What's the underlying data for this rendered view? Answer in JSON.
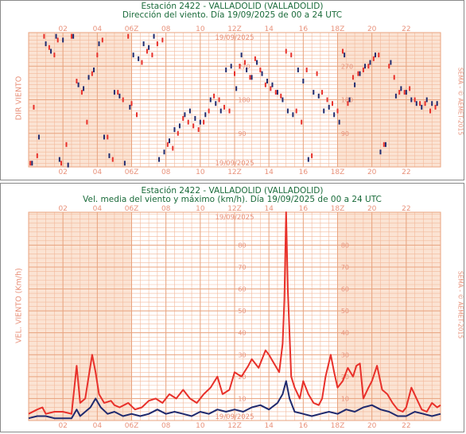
{
  "chart_data": [
    {
      "type": "scatter",
      "station_title": "Estación 2422 - VALLADOLID (VALLADOLID)",
      "title": "Dirección del viento. Día 19/09/2025 de 00 a 24 UTC",
      "ylabel": "DIR VIENTO",
      "credit": "SEMA - © AEMET-2015",
      "date_label": "19/09/2025",
      "hour_ticks": [
        "02",
        "04",
        "06Z",
        "08",
        "10",
        "12Z",
        "14",
        "16",
        "18Z",
        "20",
        "22"
      ],
      "y_ticks": [
        "90",
        "180",
        "270"
      ],
      "xlim": [
        0,
        24
      ],
      "ylim": [
        0,
        360
      ],
      "night_shading": [
        [
          0,
          6
        ],
        [
          18,
          24
        ]
      ],
      "colors": {
        "series1": "#e8302a",
        "series2": "#1f2a6e",
        "shade": "#fbe3d3",
        "grid": "#f2b89a"
      },
      "series": [
        {
          "name": "",
          "x": [
            0.1,
            0.3,
            0.5,
            0.9,
            1.2,
            1.5,
            1.7,
            1.9,
            2.2,
            2.5,
            2.8,
            3.1,
            3.4,
            3.7,
            4.0,
            4.3,
            4.6,
            4.9,
            5.2,
            5.5,
            5.8,
            6.0,
            6.3,
            6.6,
            6.9,
            7.2,
            7.5,
            7.8,
            8.1,
            8.4,
            8.7,
            9.0,
            9.3,
            9.6,
            9.9,
            10.2,
            10.5,
            10.8,
            11.1,
            11.4,
            11.7,
            12.0,
            12.3,
            12.6,
            12.9,
            13.2,
            13.5,
            13.8,
            14.1,
            14.4,
            14.7,
            15.0,
            15.3,
            15.6,
            15.9,
            16.2,
            16.5,
            16.8,
            17.1,
            17.4,
            17.7,
            18.0,
            18.3,
            18.6,
            18.9,
            19.2,
            19.5,
            19.8,
            20.1,
            20.4,
            20.7,
            21.0,
            21.3,
            21.6,
            21.9,
            22.2,
            22.5,
            22.8,
            23.1,
            23.4,
            23.7
          ],
          "values": [
            10,
            160,
            30,
            350,
            320,
            300,
            340,
            10,
            60,
            350,
            230,
            200,
            120,
            250,
            300,
            340,
            80,
            20,
            200,
            180,
            350,
            170,
            140,
            280,
            310,
            300,
            330,
            340,
            60,
            50,
            90,
            130,
            120,
            110,
            100,
            120,
            150,
            190,
            180,
            160,
            150,
            250,
            270,
            280,
            240,
            290,
            260,
            220,
            210,
            200,
            190,
            310,
            300,
            150,
            120,
            260,
            30,
            250,
            200,
            180,
            170,
            150,
            310,
            170,
            240,
            250,
            260,
            270,
            290,
            300,
            60,
            270,
            240,
            200,
            200,
            210,
            180,
            170,
            170,
            150,
            160
          ]
        },
        {
          "name": "",
          "x": [
            0.2,
            0.6,
            1.0,
            1.3,
            1.6,
            1.8,
            2.0,
            2.3,
            2.6,
            2.9,
            3.2,
            3.5,
            3.8,
            4.1,
            4.4,
            4.7,
            5.0,
            5.3,
            5.6,
            5.9,
            6.1,
            6.4,
            6.7,
            7.0,
            7.3,
            7.6,
            7.9,
            8.2,
            8.5,
            8.8,
            9.1,
            9.4,
            9.7,
            10.0,
            10.3,
            10.6,
            10.9,
            11.2,
            11.5,
            11.8,
            12.1,
            12.4,
            12.7,
            13.0,
            13.3,
            13.6,
            13.9,
            14.2,
            14.5,
            14.8,
            15.1,
            15.4,
            15.7,
            16.0,
            16.3,
            16.6,
            16.9,
            17.2,
            17.5,
            17.8,
            18.1,
            18.4,
            18.7,
            19.0,
            19.3,
            19.6,
            19.9,
            20.2,
            20.5,
            20.8,
            21.1,
            21.4,
            21.7,
            22.0,
            22.3,
            22.6,
            22.9,
            23.2,
            23.5,
            23.8
          ],
          "values": [
            10,
            80,
            330,
            310,
            350,
            20,
            340,
            5,
            350,
            220,
            210,
            240,
            260,
            330,
            80,
            30,
            200,
            190,
            10,
            160,
            300,
            290,
            330,
            320,
            350,
            20,
            40,
            70,
            100,
            110,
            140,
            150,
            130,
            120,
            140,
            180,
            170,
            150,
            260,
            270,
            210,
            300,
            260,
            240,
            280,
            250,
            230,
            220,
            200,
            180,
            150,
            140,
            260,
            230,
            20,
            200,
            190,
            150,
            160,
            140,
            120,
            300,
            180,
            220,
            250,
            270,
            280,
            300,
            40,
            60,
            280,
            190,
            210,
            200,
            180,
            170,
            160,
            180,
            170,
            170
          ]
        }
      ]
    },
    {
      "type": "line",
      "station_title": "Estación 2422 - VALLADOLID (VALLADOLID)",
      "title": "Vel. media del viento y máximo (km/h). Día 19/09/2025 de 00 a 24 UTC",
      "ylabel": "VEL. VIENTO (Km/h)",
      "credit": "SEMA - © AEMET-2015",
      "date_label": "19/09/2025",
      "hour_ticks": [
        "02",
        "04",
        "06Z",
        "08",
        "10",
        "12Z",
        "14",
        "16",
        "18Z",
        "20",
        "22"
      ],
      "y_ticks": [
        "10",
        "20",
        "30",
        "40",
        "50",
        "60",
        "70",
        "80"
      ],
      "xlim": [
        0,
        24
      ],
      "ylim": [
        0,
        95
      ],
      "night_shading": [
        [
          0,
          6
        ],
        [
          18,
          24
        ]
      ],
      "colors": {
        "gust": "#e8302a",
        "mean": "#1f2a6e",
        "shade": "#fbe3d3",
        "grid": "#f2b89a"
      },
      "series": [
        {
          "name": "",
          "x": [
            0,
            0.5,
            0.8,
            1.0,
            1.5,
            2.0,
            2.5,
            2.8,
            3.0,
            3.3,
            3.5,
            3.7,
            3.9,
            4.1,
            4.4,
            4.8,
            5.0,
            5.3,
            5.8,
            6.2,
            6.6,
            7.0,
            7.4,
            7.8,
            8.2,
            8.6,
            9.0,
            9.4,
            9.8,
            10.2,
            10.6,
            11.0,
            11.3,
            11.7,
            12.0,
            12.4,
            12.8,
            13.0,
            13.4,
            13.8,
            14.0,
            14.3,
            14.6,
            14.8,
            14.9,
            15.0,
            15.1,
            15.3,
            15.5,
            15.8,
            16.0,
            16.3,
            16.6,
            16.9,
            17.1,
            17.3,
            17.6,
            17.8,
            18.0,
            18.3,
            18.6,
            18.9,
            19.1,
            19.3,
            19.5,
            19.8,
            20.0,
            20.3,
            20.6,
            20.9,
            21.2,
            21.5,
            21.8,
            22.0,
            22.3,
            22.6,
            22.9,
            23.2,
            23.5,
            23.8,
            24.0
          ],
          "values": [
            3,
            5,
            6,
            3,
            4,
            4,
            3,
            25,
            8,
            10,
            20,
            30,
            22,
            12,
            8,
            9,
            7,
            6,
            8,
            5,
            6,
            9,
            10,
            8,
            12,
            10,
            14,
            10,
            8,
            12,
            15,
            20,
            12,
            14,
            22,
            20,
            25,
            28,
            24,
            32,
            30,
            26,
            22,
            35,
            55,
            95,
            60,
            20,
            15,
            10,
            18,
            12,
            8,
            7,
            10,
            20,
            30,
            22,
            15,
            18,
            24,
            20,
            25,
            26,
            10,
            15,
            18,
            25,
            14,
            12,
            8,
            5,
            4,
            6,
            15,
            10,
            5,
            4,
            8,
            6,
            7
          ]
        },
        {
          "name": "",
          "x": [
            0,
            0.5,
            1.0,
            1.5,
            2.0,
            2.5,
            2.8,
            3.0,
            3.3,
            3.6,
            3.9,
            4.2,
            4.6,
            5.0,
            5.5,
            6.0,
            6.5,
            7.0,
            7.5,
            8.0,
            8.5,
            9.0,
            9.5,
            10.0,
            10.5,
            11.0,
            11.5,
            12.0,
            12.5,
            13.0,
            13.5,
            14.0,
            14.5,
            14.8,
            15.0,
            15.2,
            15.5,
            16.0,
            16.5,
            17.0,
            17.5,
            18.0,
            18.5,
            19.0,
            19.5,
            20.0,
            20.5,
            21.0,
            21.5,
            22.0,
            22.5,
            23.0,
            23.5,
            24.0
          ],
          "values": [
            1,
            2,
            2,
            1,
            1,
            1,
            5,
            2,
            4,
            6,
            10,
            6,
            3,
            4,
            2,
            3,
            2,
            3,
            5,
            3,
            4,
            3,
            2,
            4,
            3,
            5,
            4,
            5,
            4,
            6,
            7,
            5,
            8,
            12,
            18,
            10,
            4,
            3,
            2,
            3,
            4,
            3,
            5,
            4,
            6,
            7,
            5,
            4,
            2,
            2,
            4,
            3,
            2,
            3
          ]
        }
      ]
    }
  ]
}
